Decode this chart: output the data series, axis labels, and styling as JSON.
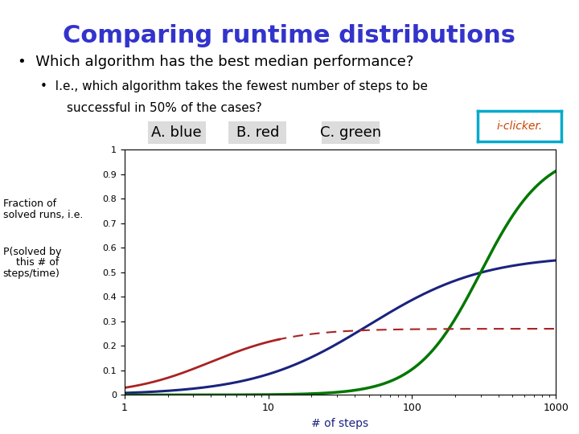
{
  "title": "Comparing runtime distributions",
  "title_color": "#3333cc",
  "title_fontsize": 22,
  "bullet1": "Which algorithm has the best median performance?",
  "bullet2_line1": "I.e., which algorithm takes the fewest number of steps to be",
  "bullet2_line2": "successful in 50% of the cases?",
  "choice_A": "A. blue",
  "choice_B": "B. red",
  "choice_C": "C. green",
  "xlabel": "# of steps",
  "xlim_log": [
    1,
    1000
  ],
  "ylim": [
    0,
    1.0
  ],
  "blue_color": "#1a237e",
  "red_color": "#aa2222",
  "green_color": "#007700",
  "background_color": "#ffffff",
  "text_color": "#000000",
  "bullet_fontsize": 13,
  "sub_bullet_fontsize": 11,
  "choice_fontsize": 13,
  "iclicker_border_color": "#00aacc",
  "iclicker_text_color": "#cc4400",
  "xlabel_color": "#1a237e"
}
